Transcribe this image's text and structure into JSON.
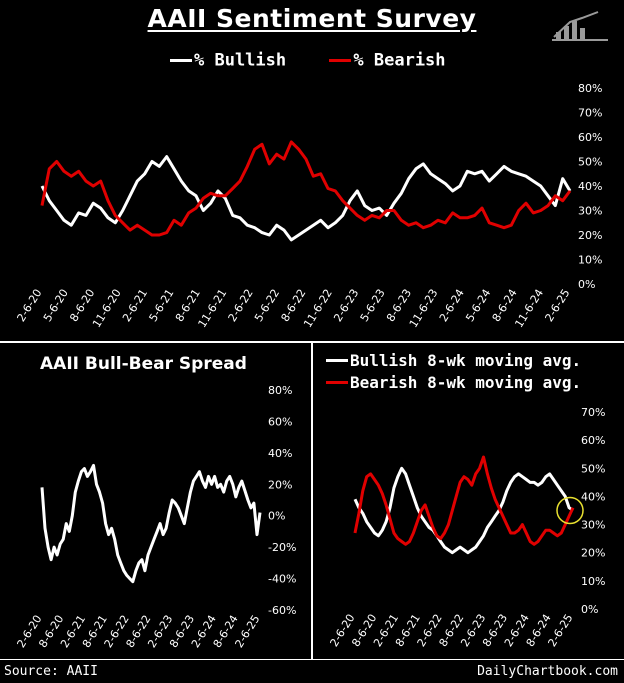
{
  "header": {
    "title": "AAII Sentiment Survey",
    "legend_bullish": "% Bullish",
    "legend_bearish": "% Bearish"
  },
  "footer": {
    "source": "Source: AAII",
    "credit": "DailyChartbook.com"
  },
  "colors": {
    "bullish": "#ffffff",
    "bearish": "#e00000",
    "background": "#000000",
    "highlight_circle": "#e8e030"
  },
  "icons": {
    "logo": "bar-chart-logo-icon"
  },
  "chart_data": [
    {
      "id": "top",
      "type": "line",
      "title": "AAII Sentiment Survey",
      "x_tick_labels": [
        "2-6-20",
        "5-6-20",
        "8-6-20",
        "11-6-20",
        "2-6-21",
        "5-6-21",
        "8-6-21",
        "11-6-21",
        "2-6-22",
        "5-6-22",
        "8-6-22",
        "11-6-22",
        "2-6-23",
        "5-6-23",
        "8-6-23",
        "11-6-23",
        "2-6-24",
        "5-6-24",
        "8-6-24",
        "11-6-24",
        "2-6-25"
      ],
      "y_tick_labels": [
        "0%",
        "10%",
        "20%",
        "30%",
        "40%",
        "50%",
        "60%",
        "70%",
        "80%"
      ],
      "ylim": [
        0,
        80
      ],
      "y_axis_position": "right",
      "legend_position": "top-center",
      "series": [
        {
          "name": "% Bullish",
          "color": "#ffffff",
          "values": [
            40,
            34,
            30,
            26,
            24,
            29,
            28,
            33,
            31,
            27,
            25,
            30,
            36,
            42,
            45,
            50,
            48,
            52,
            47,
            42,
            38,
            36,
            30,
            33,
            38,
            35,
            28,
            27,
            24,
            23,
            21,
            20,
            24,
            22,
            18,
            20,
            22,
            24,
            26,
            23,
            25,
            28,
            34,
            38,
            32,
            30,
            31,
            28,
            33,
            37,
            43,
            47,
            49,
            45,
            43,
            41,
            38,
            40,
            46,
            45,
            46,
            42,
            45,
            48,
            46,
            45,
            44,
            42,
            40,
            36,
            32,
            43,
            38
          ]
        },
        {
          "name": "% Bearish",
          "color": "#e00000",
          "values": [
            32,
            47,
            50,
            46,
            44,
            46,
            42,
            40,
            42,
            34,
            28,
            25,
            22,
            24,
            22,
            20,
            20,
            21,
            26,
            24,
            29,
            31,
            35,
            37,
            36,
            36,
            39,
            42,
            48,
            55,
            57,
            49,
            53,
            51,
            58,
            55,
            51,
            44,
            45,
            39,
            38,
            34,
            31,
            28,
            26,
            28,
            27,
            30,
            30,
            26,
            24,
            25,
            23,
            24,
            26,
            25,
            29,
            27,
            27,
            28,
            31,
            25,
            24,
            23,
            24,
            30,
            33,
            29,
            30,
            32,
            36,
            34,
            38
          ]
        }
      ]
    },
    {
      "id": "spread",
      "type": "line",
      "title": "AAII Bull-Bear Spread",
      "x_tick_labels": [
        "2-6-20",
        "8-6-20",
        "2-6-21",
        "8-6-21",
        "2-6-22",
        "8-6-22",
        "2-6-23",
        "8-6-23",
        "2-6-24",
        "8-6-24",
        "2-6-25"
      ],
      "y_tick_labels": [
        "-60%",
        "-40%",
        "-20%",
        "0%",
        "20%",
        "40%",
        "60%",
        "80%"
      ],
      "ylim": [
        -60,
        80
      ],
      "y_axis_position": "right",
      "series": [
        {
          "name": "",
          "color": "#ffffff",
          "values": [
            18,
            -8,
            -20,
            -28,
            -20,
            -25,
            -18,
            -15,
            -5,
            -10,
            0,
            15,
            22,
            28,
            30,
            25,
            28,
            32,
            20,
            15,
            8,
            -5,
            -12,
            -8,
            -15,
            -25,
            -30,
            -35,
            -38,
            -40,
            -42,
            -35,
            -30,
            -28,
            -35,
            -25,
            -20,
            -15,
            -10,
            -5,
            -12,
            -8,
            2,
            10,
            8,
            5,
            0,
            -5,
            5,
            15,
            22,
            25,
            28,
            22,
            18,
            25,
            20,
            25,
            18,
            20,
            15,
            22,
            25,
            20,
            12,
            18,
            22,
            16,
            10,
            5,
            8,
            -12,
            2
          ]
        }
      ]
    },
    {
      "id": "moving_avg",
      "type": "line",
      "title": "",
      "x_tick_labels": [
        "2-6-20",
        "8-6-20",
        "2-6-21",
        "8-6-21",
        "2-6-22",
        "8-6-22",
        "2-6-23",
        "8-6-23",
        "2-6-24",
        "8-6-24",
        "2-6-25"
      ],
      "y_tick_labels": [
        "0%",
        "10%",
        "20%",
        "30%",
        "40%",
        "50%",
        "60%",
        "70%"
      ],
      "ylim": [
        0,
        70
      ],
      "y_axis_position": "right",
      "legend_position": "top",
      "series": [
        {
          "name": "Bullish 8-wk moving avg.",
          "color": "#ffffff",
          "values": [
            39,
            36,
            34,
            31,
            29,
            27,
            26,
            28,
            31,
            36,
            43,
            47,
            50,
            48,
            44,
            40,
            36,
            33,
            31,
            29,
            28,
            26,
            24,
            22,
            21,
            20,
            21,
            22,
            21,
            20,
            21,
            22,
            24,
            26,
            29,
            31,
            33,
            35,
            38,
            42,
            45,
            47,
            48,
            47,
            46,
            45,
            45,
            44,
            45,
            47,
            48,
            46,
            44,
            42,
            40,
            36,
            35
          ]
        },
        {
          "name": "Bearish 8-wk moving avg.",
          "color": "#e00000",
          "values": [
            27,
            34,
            42,
            47,
            48,
            46,
            44,
            41,
            37,
            32,
            27,
            25,
            24,
            23,
            24,
            27,
            31,
            35,
            37,
            33,
            29,
            26,
            25,
            27,
            30,
            35,
            40,
            45,
            47,
            46,
            44,
            48,
            50,
            54,
            48,
            43,
            39,
            36,
            33,
            30,
            27,
            27,
            28,
            30,
            27,
            24,
            23,
            24,
            26,
            28,
            28,
            27,
            26,
            27,
            30,
            33,
            36
          ]
        }
      ]
    }
  ]
}
